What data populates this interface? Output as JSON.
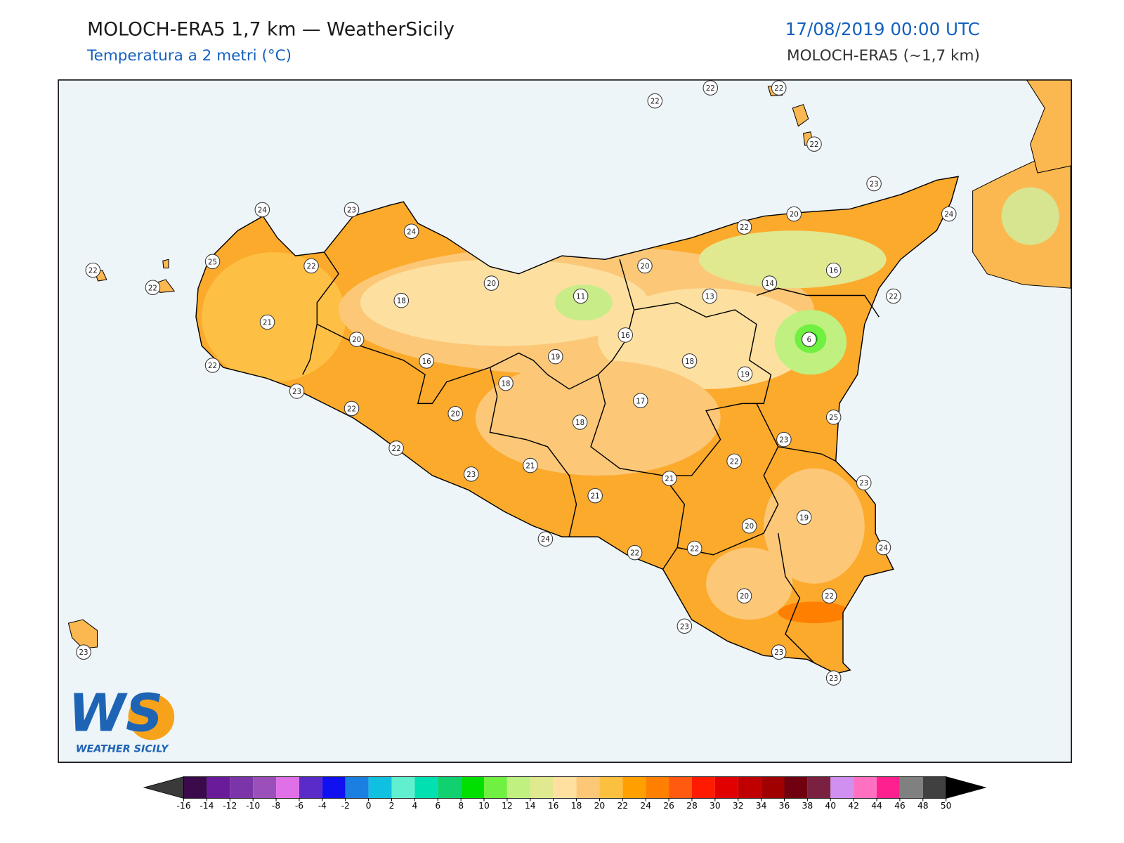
{
  "header": {
    "title": "MOLOCH-ERA5 1,7 km — WeatherSicily",
    "subtitle": "Temperatura a 2 metri (°C)",
    "datetime": "17/08/2019 00:00 UTC",
    "model": "MOLOCH-ERA5 (~1,7 km)"
  },
  "stations": [
    {
      "value": 22
    },
    {
      "value": 22
    },
    {
      "value": 22
    },
    {
      "value": 22
    },
    {
      "value": 23
    },
    {
      "value": 24
    },
    {
      "value": 20
    },
    {
      "value": 22
    },
    {
      "value": 20
    },
    {
      "value": 16
    },
    {
      "value": 14
    },
    {
      "value": 13
    },
    {
      "value": 22
    },
    {
      "value": 11
    },
    {
      "value": 16
    },
    {
      "value": 6
    },
    {
      "value": 18
    },
    {
      "value": 19
    },
    {
      "value": 17
    },
    {
      "value": 25
    },
    {
      "value": 23
    },
    {
      "value": 22
    },
    {
      "value": 23
    },
    {
      "value": 21
    },
    {
      "value": 19
    },
    {
      "value": 20
    },
    {
      "value": 24
    },
    {
      "value": 22
    },
    {
      "value": 22
    },
    {
      "value": 22
    },
    {
      "value": 20
    },
    {
      "value": 23
    },
    {
      "value": 23
    },
    {
      "value": 23
    },
    {
      "value": 24
    },
    {
      "value": 21
    },
    {
      "value": 21
    },
    {
      "value": 23
    },
    {
      "value": 22
    },
    {
      "value": 20
    },
    {
      "value": 18
    },
    {
      "value": 18
    },
    {
      "value": 19
    },
    {
      "value": 16
    },
    {
      "value": 20
    },
    {
      "value": 18
    },
    {
      "value": 24
    },
    {
      "value": 23
    },
    {
      "value": 24
    },
    {
      "value": 25
    },
    {
      "value": 22
    },
    {
      "value": 21
    },
    {
      "value": 20
    },
    {
      "value": 22
    },
    {
      "value": 23
    },
    {
      "value": 22
    },
    {
      "value": 22
    },
    {
      "value": 22
    },
    {
      "value": 23
    }
  ],
  "colorbar": {
    "ticks": [
      -16,
      -14,
      -12,
      -10,
      -8,
      -6,
      -4,
      -2,
      0,
      2,
      4,
      6,
      8,
      10,
      12,
      14,
      16,
      18,
      20,
      22,
      24,
      26,
      28,
      30,
      32,
      34,
      36,
      38,
      40,
      42,
      44,
      46,
      48,
      50
    ],
    "colors": [
      "#3b0a4b",
      "#6a1b9a",
      "#7b35a8",
      "#9b4fb8",
      "#e070e8",
      "#5a2bc8",
      "#1010f0",
      "#1a7fe0",
      "#10c0e0",
      "#60f0d0",
      "#00e0b0",
      "#10d070",
      "#00e000",
      "#70f040",
      "#c0f080",
      "#e0e890",
      "#ffe0a0",
      "#fcc878",
      "#fcc040",
      "#ffa000",
      "#ff8000",
      "#ff5a10",
      "#ff1a00",
      "#e00000",
      "#c00000",
      "#a00000",
      "#700010",
      "#7a2040",
      "#d090f0",
      "#ff70c0",
      "#ff2090",
      "#808080",
      "#404040"
    ],
    "under_color": "#3a3a3a",
    "over_color": "#000000"
  },
  "logo": {
    "letters": "WS",
    "text": "WEATHER SICILY"
  }
}
